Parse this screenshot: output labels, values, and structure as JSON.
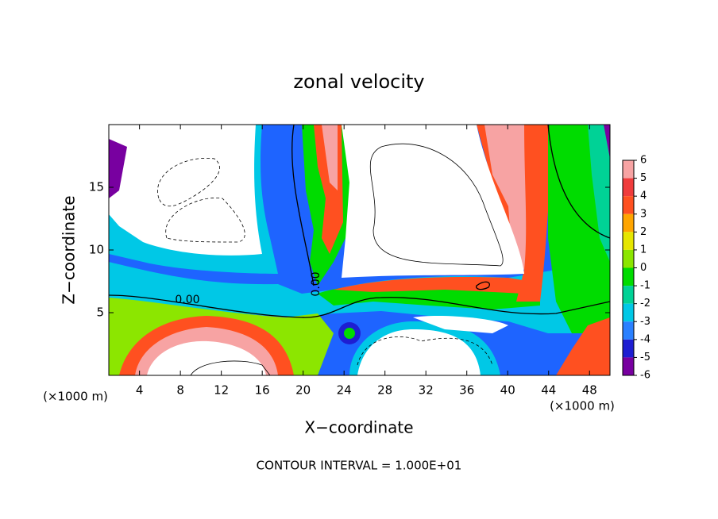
{
  "chart_data": {
    "type": "contour",
    "title": "zonal velocity",
    "x_label": "X−coordinate",
    "y_label": "Z−coordinate",
    "y_unit": "(×1000 m)",
    "x_unit": "(×1000 m)",
    "xlim": [
      1,
      50
    ],
    "xticks": [
      4,
      8,
      12,
      16,
      20,
      24,
      28,
      32,
      36,
      40,
      44,
      48
    ],
    "ylim": [
      0,
      20
    ],
    "yticks": [
      5,
      10,
      15
    ],
    "contour_labels": [
      "0.00",
      "0.00"
    ],
    "footer": "CONTOUR INTERVAL = 1.000E+01",
    "colorbar": {
      "ticks": [
        6,
        5,
        4,
        3,
        2,
        1,
        0,
        -1,
        -2,
        -3,
        -4,
        -5,
        -6
      ],
      "colors": [
        "#f7a3a3",
        "#f03c3c",
        "#ff5020",
        "#ffa500",
        "#e6e600",
        "#8ce600",
        "#00dc00",
        "#00d296",
        "#00c8e6",
        "#2a80ff",
        "#1e1ed2",
        "#7800a0"
      ]
    }
  }
}
